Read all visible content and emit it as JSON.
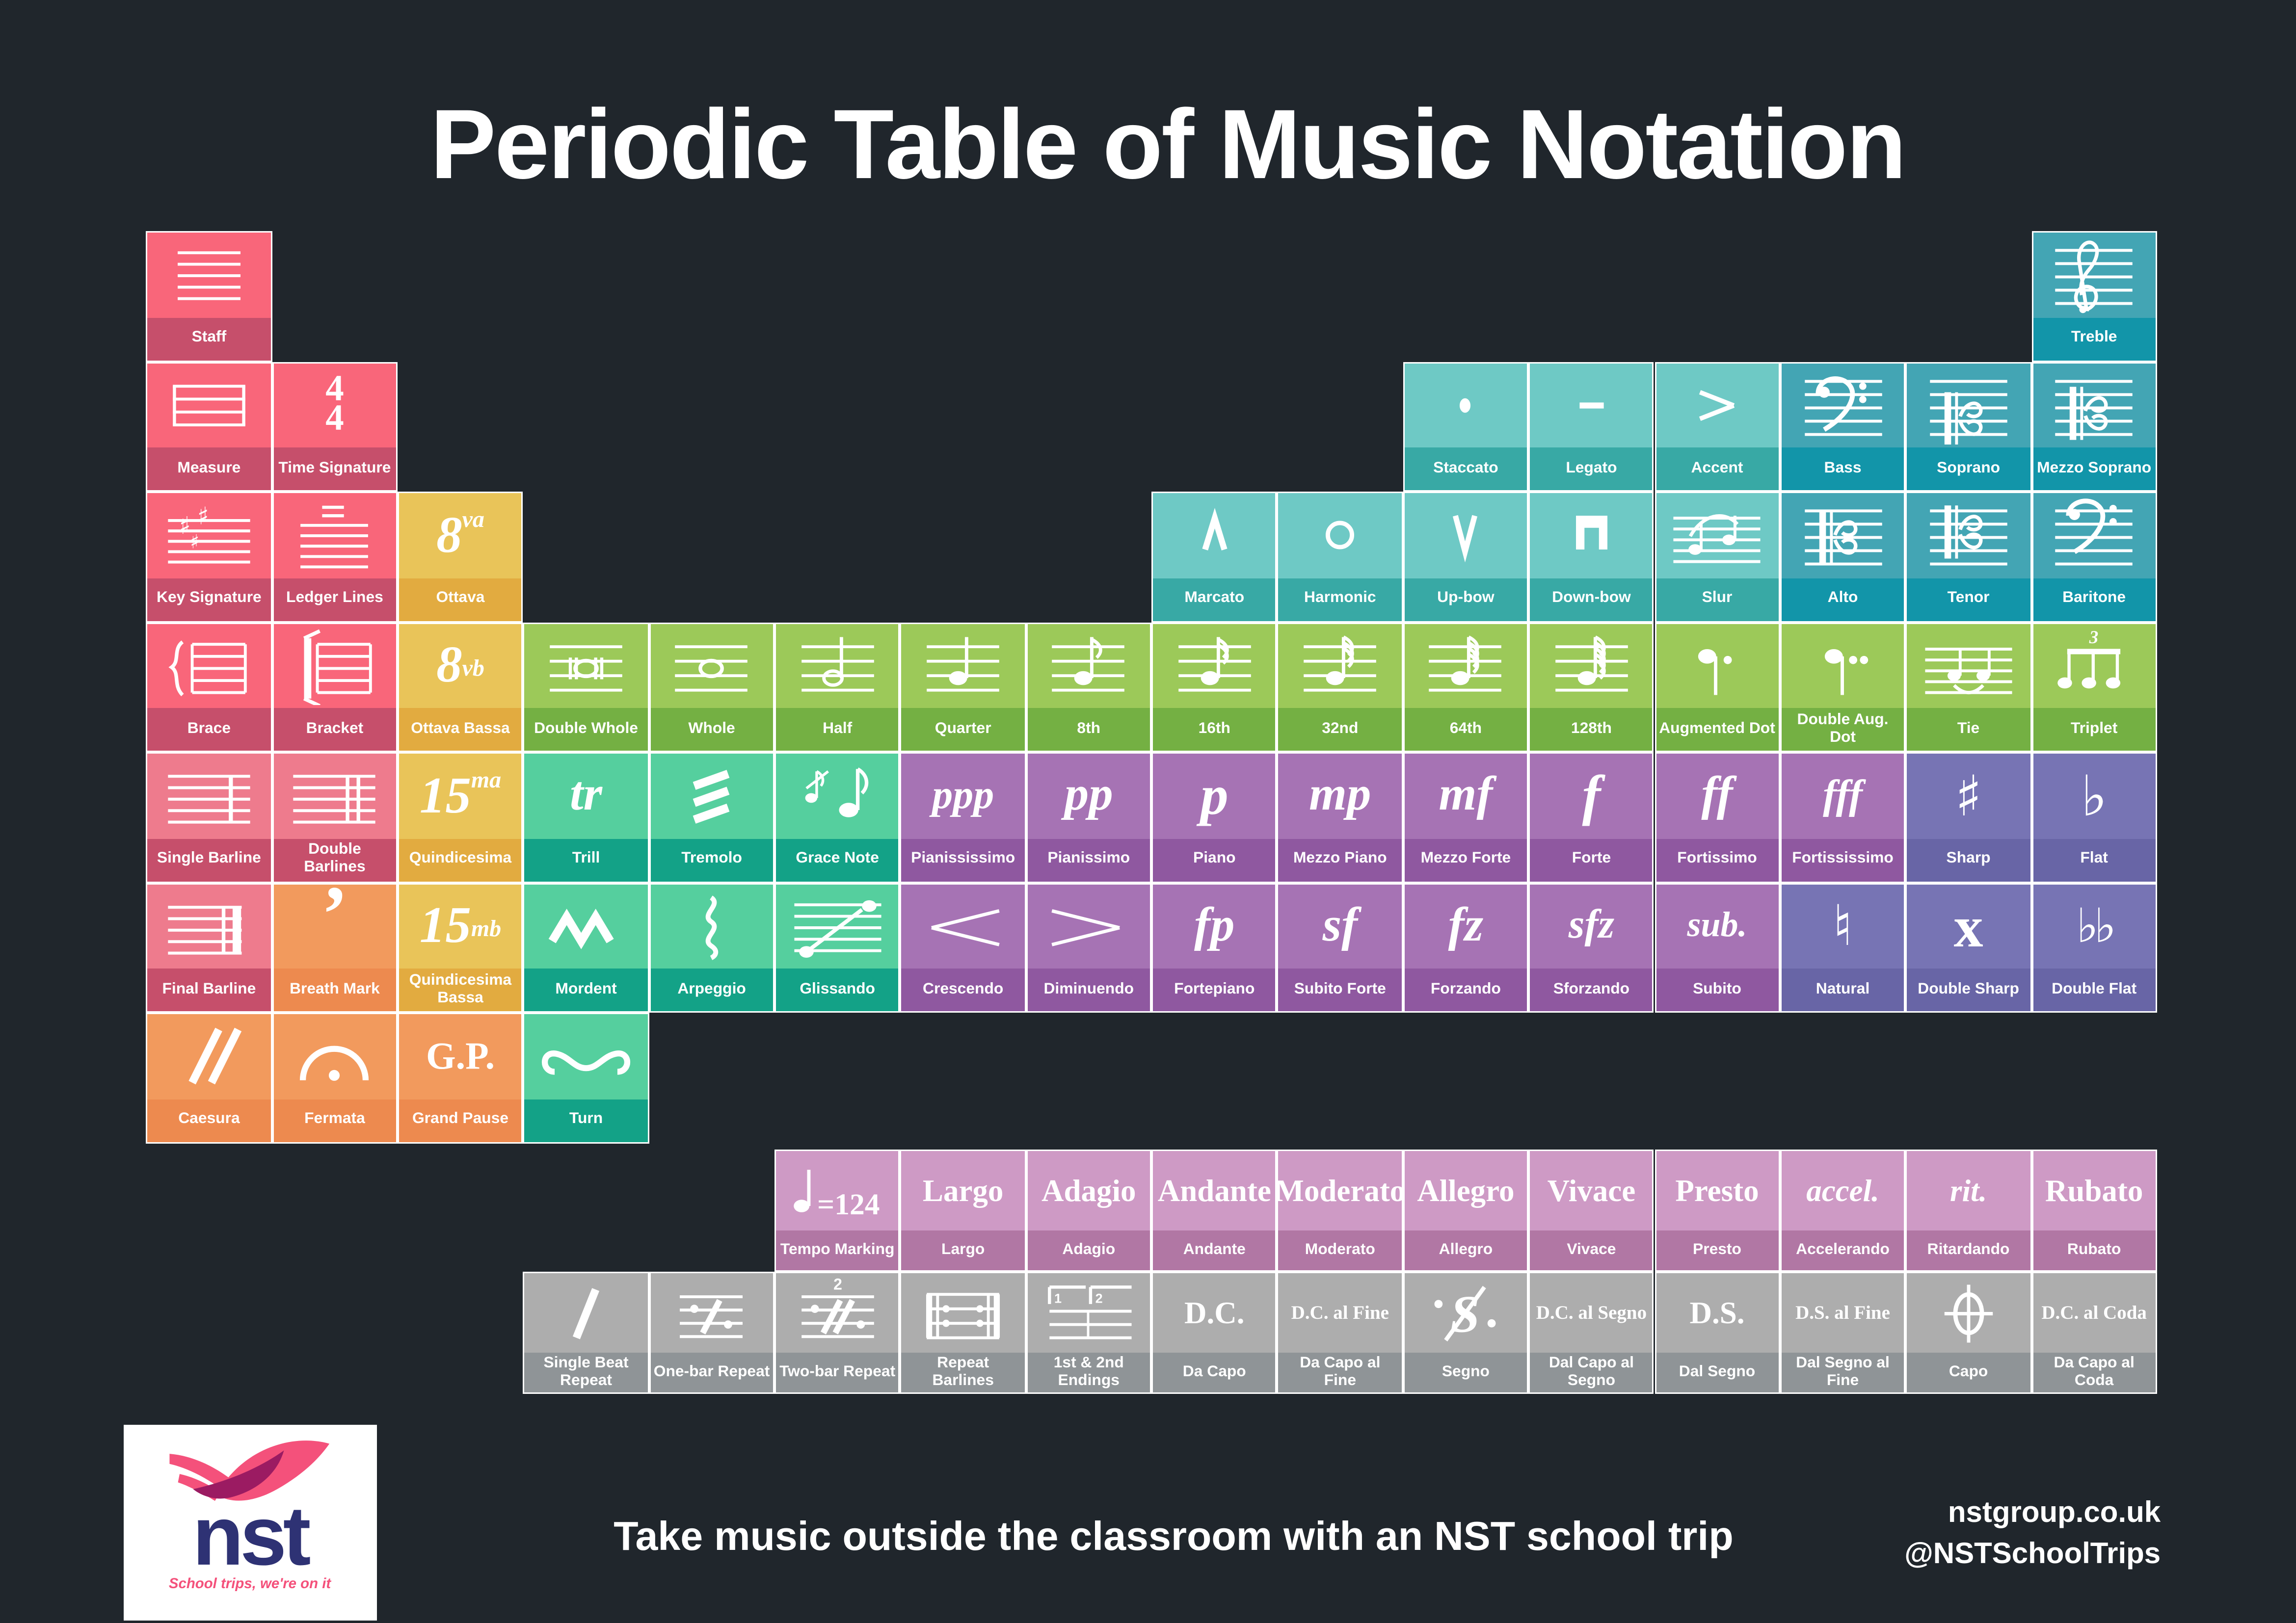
{
  "title": "Periodic Table of Music Notation",
  "footer": {
    "tagline": "Take music outside the classroom with an NST school trip",
    "website": "nstgroup.co.uk",
    "social": "@NSTSchoolTrips",
    "logo": {
      "name": "nst",
      "slogan": "School trips, we're on it"
    }
  },
  "colors": {
    "background": "#20262C",
    "cell_border": "#FFFFFF",
    "logo_navy": "#2E3274",
    "logo_pink": "#F4517B",
    "logo_magenta": "#9B1B62",
    "groups": {
      "staff": {
        "top": "#F9667A",
        "strip": "#C64F6B"
      },
      "barline": {
        "top": "#EE7B8D",
        "strip": "#C64F6B"
      },
      "pause": {
        "top": "#F29A5D",
        "strip": "#ED8A4F"
      },
      "octave": {
        "top": "#E9C459",
        "strip": "#E2AB40"
      },
      "note": {
        "top": "#9CC959",
        "strip": "#74B043"
      },
      "ornament": {
        "top": "#55CF9E",
        "strip": "#13A287"
      },
      "articulation": {
        "top": "#6EC9C5",
        "strip": "#38A9A5"
      },
      "clef": {
        "top": "#43A5B4",
        "strip": "#1295A9"
      },
      "dynamic": {
        "top": "#A673B4",
        "strip": "#8F58A0"
      },
      "accidental": {
        "top": "#7774B4",
        "strip": "#6865A6"
      },
      "tempo": {
        "top": "#CE9AC5",
        "strip": "#B177A4"
      },
      "repeat": {
        "top": "#ADADAD",
        "strip": "#8F9497"
      }
    }
  },
  "cells": [
    {
      "r": 1,
      "c": 1,
      "label": "Staff",
      "group": "staff",
      "t": "svg",
      "s": "staff"
    },
    {
      "r": 1,
      "c": 16,
      "label": "Treble",
      "group": "clef",
      "t": "svg",
      "s": "treble-clef"
    },
    {
      "r": 2,
      "c": 1,
      "label": "Measure",
      "group": "staff",
      "t": "svg",
      "s": "measure"
    },
    {
      "r": 2,
      "c": 2,
      "label": "Time Signature",
      "group": "staff",
      "t": "frac",
      "s": "4/4"
    },
    {
      "r": 2,
      "c": 11,
      "label": "Staccato",
      "group": "articulation",
      "t": "svg",
      "s": "staccato"
    },
    {
      "r": 2,
      "c": 12,
      "label": "Legato",
      "group": "articulation",
      "t": "svg",
      "s": "tenuto"
    },
    {
      "r": 2,
      "c": 13,
      "label": "Accent",
      "group": "articulation",
      "t": "svg",
      "s": "accent"
    },
    {
      "r": 2,
      "c": 14,
      "label": "Bass",
      "group": "clef",
      "t": "svg",
      "s": "bass-clef"
    },
    {
      "r": 2,
      "c": 15,
      "label": "Soprano",
      "group": "clef",
      "t": "svg",
      "s": "soprano-clef"
    },
    {
      "r": 2,
      "c": 16,
      "label": "Mezzo Soprano",
      "group": "clef",
      "t": "svg",
      "s": "mezzo-soprano-clef"
    },
    {
      "r": 3,
      "c": 1,
      "label": "Key Signature",
      "group": "staff",
      "t": "svg",
      "s": "key-signature"
    },
    {
      "r": 3,
      "c": 2,
      "label": "Ledger Lines",
      "group": "staff",
      "t": "svg",
      "s": "ledger-lines"
    },
    {
      "r": 3,
      "c": 3,
      "label": "Ottava",
      "group": "octave",
      "t": "octave",
      "s": "8|va"
    },
    {
      "r": 3,
      "c": 9,
      "label": "Marcato",
      "group": "articulation",
      "t": "svg",
      "s": "marcato"
    },
    {
      "r": 3,
      "c": 10,
      "label": "Harmonic",
      "group": "articulation",
      "t": "svg",
      "s": "harmonic"
    },
    {
      "r": 3,
      "c": 11,
      "label": "Up-bow",
      "group": "articulation",
      "t": "svg",
      "s": "up-bow"
    },
    {
      "r": 3,
      "c": 12,
      "label": "Down-bow",
      "group": "articulation",
      "t": "svg",
      "s": "down-bow"
    },
    {
      "r": 3,
      "c": 13,
      "label": "Slur",
      "group": "articulation",
      "t": "svg",
      "s": "slur"
    },
    {
      "r": 3,
      "c": 14,
      "label": "Alto",
      "group": "clef",
      "t": "svg",
      "s": "alto-clef"
    },
    {
      "r": 3,
      "c": 15,
      "label": "Tenor",
      "group": "clef",
      "t": "svg",
      "s": "tenor-clef"
    },
    {
      "r": 3,
      "c": 16,
      "label": "Baritone",
      "group": "clef",
      "t": "svg",
      "s": "baritone-clef"
    },
    {
      "r": 4,
      "c": 1,
      "label": "Brace",
      "group": "staff",
      "t": "svg",
      "s": "brace"
    },
    {
      "r": 4,
      "c": 2,
      "label": "Bracket",
      "group": "staff",
      "t": "svg",
      "s": "bracket"
    },
    {
      "r": 4,
      "c": 3,
      "label": "Ottava Bassa",
      "group": "octave",
      "t": "octave",
      "s": "8|vb"
    },
    {
      "r": 4,
      "c": 4,
      "label": "Double Whole",
      "group": "note",
      "t": "svg",
      "s": "double-whole-note"
    },
    {
      "r": 4,
      "c": 5,
      "label": "Whole",
      "group": "note",
      "t": "svg",
      "s": "whole-note"
    },
    {
      "r": 4,
      "c": 6,
      "label": "Half",
      "group": "note",
      "t": "svg",
      "s": "half-note"
    },
    {
      "r": 4,
      "c": 7,
      "label": "Quarter",
      "group": "note",
      "t": "svg",
      "s": "quarter-note"
    },
    {
      "r": 4,
      "c": 8,
      "label": "8th",
      "group": "note",
      "t": "svg",
      "s": "eighth-note"
    },
    {
      "r": 4,
      "c": 9,
      "label": "16th",
      "group": "note",
      "t": "svg",
      "s": "sixteenth-note"
    },
    {
      "r": 4,
      "c": 10,
      "label": "32nd",
      "group": "note",
      "t": "svg",
      "s": "thirty-second-note"
    },
    {
      "r": 4,
      "c": 11,
      "label": "64th",
      "group": "note",
      "t": "svg",
      "s": "sixty-fourth-note"
    },
    {
      "r": 4,
      "c": 12,
      "label": "128th",
      "group": "note",
      "t": "svg",
      "s": "hundred-twenty-eighth-note"
    },
    {
      "r": 4,
      "c": 13,
      "label": "Augmented Dot",
      "group": "note",
      "t": "svg",
      "s": "augmented-dot"
    },
    {
      "r": 4,
      "c": 14,
      "label": "Double Aug. Dot",
      "group": "note",
      "t": "svg",
      "s": "double-augmented-dot"
    },
    {
      "r": 4,
      "c": 15,
      "label": "Tie",
      "group": "note",
      "t": "svg",
      "s": "tie"
    },
    {
      "r": 4,
      "c": 16,
      "label": "Triplet",
      "group": "note",
      "t": "svg",
      "s": "triplet"
    },
    {
      "r": 5,
      "c": 1,
      "label": "Single Barline",
      "group": "barline",
      "t": "svg",
      "s": "single-barline"
    },
    {
      "r": 5,
      "c": 2,
      "label": "Double Barlines",
      "group": "barline",
      "t": "svg",
      "s": "double-barlines"
    },
    {
      "r": 5,
      "c": 3,
      "label": "Quindicesima",
      "group": "octave",
      "t": "octave",
      "s": "15|ma"
    },
    {
      "r": 5,
      "c": 4,
      "label": "Trill",
      "group": "ornament",
      "t": "dyn",
      "s": "tr"
    },
    {
      "r": 5,
      "c": 5,
      "label": "Tremolo",
      "group": "ornament",
      "t": "svg",
      "s": "tremolo"
    },
    {
      "r": 5,
      "c": 6,
      "label": "Grace Note",
      "group": "ornament",
      "t": "svg",
      "s": "grace-note"
    },
    {
      "r": 5,
      "c": 7,
      "label": "Pianississimo",
      "group": "dynamic",
      "t": "dyn",
      "s": "ppp"
    },
    {
      "r": 5,
      "c": 8,
      "label": "Pianissimo",
      "group": "dynamic",
      "t": "dyn",
      "s": "pp"
    },
    {
      "r": 5,
      "c": 9,
      "label": "Piano",
      "group": "dynamic",
      "t": "dyn",
      "s": "p"
    },
    {
      "r": 5,
      "c": 10,
      "label": "Mezzo Piano",
      "group": "dynamic",
      "t": "dyn",
      "s": "mp"
    },
    {
      "r": 5,
      "c": 11,
      "label": "Mezzo Forte",
      "group": "dynamic",
      "t": "dyn",
      "s": "mf"
    },
    {
      "r": 5,
      "c": 12,
      "label": "Forte",
      "group": "dynamic",
      "t": "dyn",
      "s": "f"
    },
    {
      "r": 5,
      "c": 13,
      "label": "Fortissimo",
      "group": "dynamic",
      "t": "dyn",
      "s": "ff"
    },
    {
      "r": 5,
      "c": 14,
      "label": "Fortississimo",
      "group": "dynamic",
      "t": "dyn",
      "s": "fff"
    },
    {
      "r": 5,
      "c": 15,
      "label": "Sharp",
      "group": "accidental",
      "t": "glyph",
      "s": "♯"
    },
    {
      "r": 5,
      "c": 16,
      "label": "Flat",
      "group": "accidental",
      "t": "glyph",
      "s": "♭"
    },
    {
      "r": 6,
      "c": 1,
      "label": "Final Barline",
      "group": "barline",
      "t": "svg",
      "s": "final-barline"
    },
    {
      "r": 6,
      "c": 2,
      "label": "Breath Mark",
      "group": "pause",
      "t": "serif",
      "s": "’"
    },
    {
      "r": 6,
      "c": 3,
      "label": "Quindicesima Bassa",
      "group": "octave",
      "t": "octave",
      "s": "15|mb"
    },
    {
      "r": 6,
      "c": 4,
      "label": "Mordent",
      "group": "ornament",
      "t": "svg",
      "s": "mordent"
    },
    {
      "r": 6,
      "c": 5,
      "label": "Arpeggio",
      "group": "ornament",
      "t": "svg",
      "s": "arpeggio"
    },
    {
      "r": 6,
      "c": 6,
      "label": "Glissando",
      "group": "ornament",
      "t": "svg",
      "s": "glissando"
    },
    {
      "r": 6,
      "c": 7,
      "label": "Crescendo",
      "group": "dynamic",
      "t": "svg",
      "s": "crescendo-hairpin"
    },
    {
      "r": 6,
      "c": 8,
      "label": "Diminuendo",
      "group": "dynamic",
      "t": "svg",
      "s": "diminuendo-hairpin"
    },
    {
      "r": 6,
      "c": 9,
      "label": "Fortepiano",
      "group": "dynamic",
      "t": "dyn",
      "s": "fp"
    },
    {
      "r": 6,
      "c": 10,
      "label": "Subito Forte",
      "group": "dynamic",
      "t": "dyn",
      "s": "sf"
    },
    {
      "r": 6,
      "c": 11,
      "label": "Forzando",
      "group": "dynamic",
      "t": "dyn",
      "s": "fz"
    },
    {
      "r": 6,
      "c": 12,
      "label": "Sforzando",
      "group": "dynamic",
      "t": "dyn",
      "s": "sfz"
    },
    {
      "r": 6,
      "c": 13,
      "label": "Subito",
      "group": "dynamic",
      "t": "dyn",
      "s": "sub."
    },
    {
      "r": 6,
      "c": 14,
      "label": "Natural",
      "group": "accidental",
      "t": "glyph",
      "s": "♮"
    },
    {
      "r": 6,
      "c": 15,
      "label": "Double Sharp",
      "group": "accidental",
      "t": "serif",
      "s": "x"
    },
    {
      "r": 6,
      "c": 16,
      "label": "Double Flat",
      "group": "accidental",
      "t": "glyph",
      "s": "♭♭"
    },
    {
      "r": 7,
      "c": 1,
      "label": "Caesura",
      "group": "pause",
      "t": "svg",
      "s": "caesura"
    },
    {
      "r": 7,
      "c": 2,
      "label": "Fermata",
      "group": "pause",
      "t": "svg",
      "s": "fermata"
    },
    {
      "r": 7,
      "c": 3,
      "label": "Grand Pause",
      "group": "pause",
      "t": "serif",
      "s": "G.P."
    },
    {
      "r": 7,
      "c": 4,
      "label": "Turn",
      "group": "ornament",
      "t": "svg",
      "s": "turn"
    },
    {
      "r": 8,
      "c": 6,
      "label": "Tempo Marking",
      "group": "tempo",
      "t": "svg",
      "s": "tempo-marking"
    },
    {
      "r": 8,
      "c": 7,
      "label": "Largo",
      "group": "tempo",
      "t": "serif",
      "s": "Largo"
    },
    {
      "r": 8,
      "c": 8,
      "label": "Adagio",
      "group": "tempo",
      "t": "serif",
      "s": "Adagio"
    },
    {
      "r": 8,
      "c": 9,
      "label": "Andante",
      "group": "tempo",
      "t": "serif",
      "s": "Andante"
    },
    {
      "r": 8,
      "c": 10,
      "label": "Moderato",
      "group": "tempo",
      "t": "serif",
      "s": "Moderato"
    },
    {
      "r": 8,
      "c": 11,
      "label": "Allegro",
      "group": "tempo",
      "t": "serif",
      "s": "Allegro"
    },
    {
      "r": 8,
      "c": 12,
      "label": "Vivace",
      "group": "tempo",
      "t": "serif",
      "s": "Vivace"
    },
    {
      "r": 8,
      "c": 13,
      "label": "Presto",
      "group": "tempo",
      "t": "serif",
      "s": "Presto"
    },
    {
      "r": 8,
      "c": 14,
      "label": "Accelerando",
      "group": "tempo",
      "t": "serif-i",
      "s": "accel."
    },
    {
      "r": 8,
      "c": 15,
      "label": "Ritardando",
      "group": "tempo",
      "t": "serif-i",
      "s": "rit."
    },
    {
      "r": 8,
      "c": 16,
      "label": "Rubato",
      "group": "tempo",
      "t": "serif",
      "s": "Rubato"
    },
    {
      "r": 9,
      "c": 4,
      "label": "Single Beat Repeat",
      "group": "repeat",
      "t": "svg",
      "s": "single-beat-repeat"
    },
    {
      "r": 9,
      "c": 5,
      "label": "One-bar Repeat",
      "group": "repeat",
      "t": "svg",
      "s": "one-bar-repeat"
    },
    {
      "r": 9,
      "c": 6,
      "label": "Two-bar Repeat",
      "group": "repeat",
      "t": "svg",
      "s": "two-bar-repeat"
    },
    {
      "r": 9,
      "c": 7,
      "label": "Repeat Barlines",
      "group": "repeat",
      "t": "svg",
      "s": "repeat-barlines"
    },
    {
      "r": 9,
      "c": 8,
      "label": "1st & 2nd Endings",
      "group": "repeat",
      "t": "svg",
      "s": "first-second-endings"
    },
    {
      "r": 9,
      "c": 9,
      "label": "Da Capo",
      "group": "repeat",
      "t": "serif",
      "s": "D.C."
    },
    {
      "r": 9,
      "c": 10,
      "label": "Da Capo al Fine",
      "group": "repeat",
      "t": "serif",
      "s": "D.C. al Fine"
    },
    {
      "r": 9,
      "c": 11,
      "label": "Segno",
      "group": "repeat",
      "t": "svg",
      "s": "segno"
    },
    {
      "r": 9,
      "c": 12,
      "label": "Dal Capo al Segno",
      "group": "repeat",
      "t": "serif",
      "s": "D.C. al Segno"
    },
    {
      "r": 9,
      "c": 13,
      "label": "Dal Segno",
      "group": "repeat",
      "t": "serif",
      "s": "D.S."
    },
    {
      "r": 9,
      "c": 14,
      "label": "Dal Segno al Fine",
      "group": "repeat",
      "t": "serif",
      "s": "D.S. al Fine"
    },
    {
      "r": 9,
      "c": 15,
      "label": "Capo",
      "group": "repeat",
      "t": "svg",
      "s": "coda"
    },
    {
      "r": 9,
      "c": 16,
      "label": "Da Capo al Coda",
      "group": "repeat",
      "t": "serif",
      "s": "D.C. al Coda"
    }
  ]
}
